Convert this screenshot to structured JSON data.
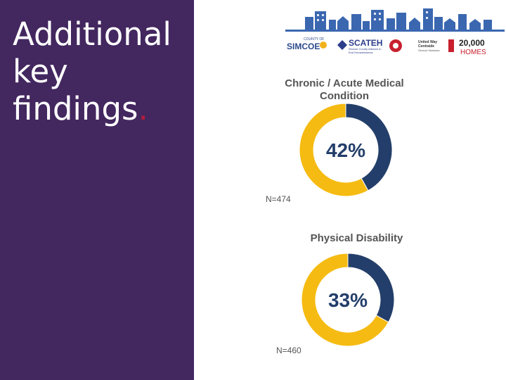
{
  "slide": {
    "title_lines": [
      "Additional",
      "key",
      "findings"
    ],
    "title_dot": "."
  },
  "banner": {
    "logos": {
      "simcoe_top": "COUNTY OF",
      "simcoe": "SIMCOE",
      "scateh": "SCATEH",
      "scateh_sub": "Simcoe County Alliance to",
      "scateh_sub2": "End Homelessness",
      "uw1": "United Way",
      "uw2": "Centraide",
      "uw3": "Simcoe Muskoka",
      "homes_top": "20,000",
      "homes_bottom": "HOMES"
    },
    "colors": {
      "skyline": "#3b67b0",
      "scateh": "#2d3d8c",
      "red": "#c8202f"
    }
  },
  "chart_data": [
    {
      "type": "pie",
      "title": "Chronic / Acute Medical Condition",
      "label": "42%",
      "slices": [
        {
          "label": "42%",
          "value": 42,
          "color": "#233e6a"
        },
        {
          "label": "",
          "value": 58,
          "color": "#f5bb12"
        }
      ],
      "n": "N=474"
    },
    {
      "type": "pie",
      "title": "Physical Disability",
      "label": "33%",
      "slices": [
        {
          "label": "33%",
          "value": 33,
          "color": "#233e6a"
        },
        {
          "label": "",
          "value": 67,
          "color": "#f5bb12"
        }
      ],
      "n": "N=460"
    }
  ]
}
